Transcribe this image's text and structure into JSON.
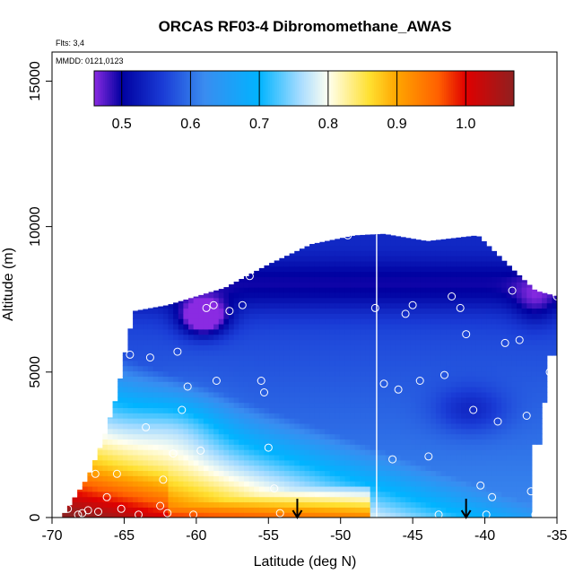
{
  "chart_data": {
    "type": "heatmap",
    "title": "ORCAS RF03-4 Dibromomethane_AWAS",
    "flights_note": "Flts: 3,4",
    "dates_note": "MMDD: 0121,0123",
    "xlabel": "Latitude (deg N)",
    "ylabel": "Altitude (m)",
    "xlim": [
      -70,
      -35
    ],
    "ylim": [
      0,
      16000
    ],
    "x_ticks": [
      -70,
      -65,
      -60,
      -55,
      -50,
      -45,
      -40,
      -35
    ],
    "x_tick_labels": [
      "-70",
      "-65",
      "-60",
      "-55",
      "-50",
      "-45",
      "-40",
      "-35"
    ],
    "y_ticks": [
      0,
      5000,
      10000,
      15000
    ],
    "y_tick_labels": [
      "0",
      "5000",
      "10000",
      "15000"
    ],
    "colorbar": {
      "range": [
        0.46,
        1.07
      ],
      "ticks": [
        0.5,
        0.6,
        0.7,
        0.8,
        0.9,
        1.0
      ],
      "tick_labels": [
        "0.5",
        "0.6",
        "0.7",
        "0.8",
        "0.9",
        "1.0"
      ],
      "colors": [
        {
          "v": 0.46,
          "c": "#8a2be2"
        },
        {
          "v": 0.5,
          "c": "#0000a0"
        },
        {
          "v": 0.56,
          "c": "#1a3cd6"
        },
        {
          "v": 0.62,
          "c": "#3a8cf0"
        },
        {
          "v": 0.7,
          "c": "#00b4ff"
        },
        {
          "v": 0.76,
          "c": "#a8dcff"
        },
        {
          "v": 0.8,
          "c": "#fffff0"
        },
        {
          "v": 0.86,
          "c": "#ffe030"
        },
        {
          "v": 0.9,
          "c": "#ffa500"
        },
        {
          "v": 0.96,
          "c": "#ff6000"
        },
        {
          "v": 1.0,
          "c": "#e00000"
        },
        {
          "v": 1.07,
          "c": "#902020"
        }
      ]
    },
    "profile_line_lat": -47.5,
    "arrow_lats": [
      -53,
      -41.3
    ],
    "samples": [
      {
        "lat": -68.9,
        "alt": 300
      },
      {
        "lat": -68.5,
        "alt": 1300
      },
      {
        "lat": -68.2,
        "alt": 100
      },
      {
        "lat": -67.9,
        "alt": 150
      },
      {
        "lat": -67.5,
        "alt": 250
      },
      {
        "lat": -67.0,
        "alt": 1500
      },
      {
        "lat": -66.8,
        "alt": 200
      },
      {
        "lat": -66.2,
        "alt": 700
      },
      {
        "lat": -65.5,
        "alt": 1500
      },
      {
        "lat": -65.2,
        "alt": 300
      },
      {
        "lat": -64.6,
        "alt": 5600
      },
      {
        "lat": -64.0,
        "alt": 100
      },
      {
        "lat": -63.5,
        "alt": 3100
      },
      {
        "lat": -63.2,
        "alt": 5500
      },
      {
        "lat": -62.5,
        "alt": 400
      },
      {
        "lat": -62.3,
        "alt": 1300
      },
      {
        "lat": -62.0,
        "alt": 150
      },
      {
        "lat": -61.6,
        "alt": 2200
      },
      {
        "lat": -61.3,
        "alt": 5700
      },
      {
        "lat": -61.0,
        "alt": 3700
      },
      {
        "lat": -60.6,
        "alt": 4500
      },
      {
        "lat": -60.2,
        "alt": 100
      },
      {
        "lat": -59.7,
        "alt": 2300
      },
      {
        "lat": -59.3,
        "alt": 7200
      },
      {
        "lat": -58.8,
        "alt": 7300
      },
      {
        "lat": -58.6,
        "alt": 4700
      },
      {
        "lat": -57.7,
        "alt": 7100
      },
      {
        "lat": -56.8,
        "alt": 7300
      },
      {
        "lat": -56.3,
        "alt": 8300
      },
      {
        "lat": -55.5,
        "alt": 4700
      },
      {
        "lat": -55.3,
        "alt": 4300
      },
      {
        "lat": -55.0,
        "alt": 2400
      },
      {
        "lat": -54.6,
        "alt": 1000
      },
      {
        "lat": -54.2,
        "alt": 150
      },
      {
        "lat": -49.5,
        "alt": 9700
      },
      {
        "lat": -47.6,
        "alt": 7200
      },
      {
        "lat": -47.0,
        "alt": 4600
      },
      {
        "lat": -46.4,
        "alt": 2000
      },
      {
        "lat": -46.0,
        "alt": 4400
      },
      {
        "lat": -45.5,
        "alt": 7000
      },
      {
        "lat": -45.0,
        "alt": 7300
      },
      {
        "lat": -44.5,
        "alt": 4700
      },
      {
        "lat": -43.9,
        "alt": 2100
      },
      {
        "lat": -43.2,
        "alt": 100
      },
      {
        "lat": -42.8,
        "alt": 4900
      },
      {
        "lat": -42.3,
        "alt": 7600
      },
      {
        "lat": -41.7,
        "alt": 7200
      },
      {
        "lat": -41.3,
        "alt": 6300
      },
      {
        "lat": -40.8,
        "alt": 3700
      },
      {
        "lat": -40.3,
        "alt": 1100
      },
      {
        "lat": -39.9,
        "alt": 100
      },
      {
        "lat": -39.5,
        "alt": 700
      },
      {
        "lat": -39.1,
        "alt": 3300
      },
      {
        "lat": -38.6,
        "alt": 6000
      },
      {
        "lat": -38.1,
        "alt": 7800
      },
      {
        "lat": -37.6,
        "alt": 6100
      },
      {
        "lat": -37.1,
        "alt": 3500
      },
      {
        "lat": -36.8,
        "alt": 900
      },
      {
        "lat": -36.5,
        "alt": 100
      },
      {
        "lat": -35.9,
        "alt": 2300
      },
      {
        "lat": -35.5,
        "alt": 5000
      },
      {
        "lat": -35.0,
        "alt": 7600
      }
    ]
  }
}
